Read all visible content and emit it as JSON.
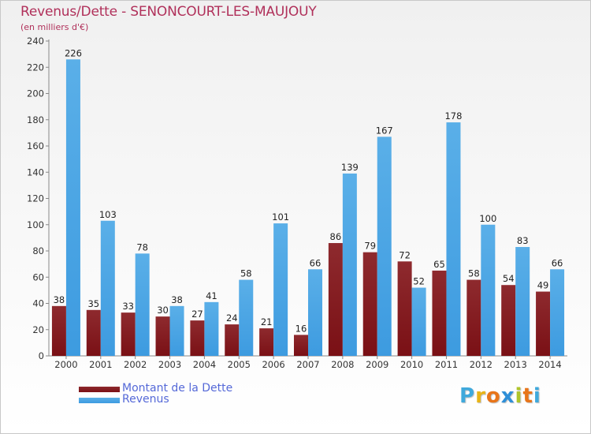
{
  "title": "Revenus/Dette - SENONCOURT-LES-MAUJOUY",
  "subtitle": "(en milliers d'€)",
  "logo": {
    "text": "Proxiti",
    "colors": [
      "#3fa9dc",
      "#e8b417",
      "#e8751a",
      "#2e8fd8",
      "#b0c52a",
      "#e8751a",
      "#3fa9dc"
    ]
  },
  "colors": {
    "dette": "#7a1015",
    "dette_top": "#8e2a2e",
    "revenus": "#3d9be0",
    "revenus_top": "#5aafe8",
    "title": "#b0305a",
    "legend_text": "#5569d8"
  },
  "chart_data": {
    "type": "bar",
    "categories": [
      "2000",
      "2001",
      "2002",
      "2003",
      "2004",
      "2005",
      "2006",
      "2007",
      "2008",
      "2009",
      "2010",
      "2011",
      "2012",
      "2013",
      "2014"
    ],
    "series": [
      {
        "name": "Montant de la Dette",
        "values": [
          38,
          35,
          33,
          30,
          27,
          24,
          21,
          16,
          86,
          79,
          72,
          65,
          58,
          54,
          49
        ]
      },
      {
        "name": "Revenus",
        "values": [
          226,
          103,
          78,
          38,
          41,
          58,
          101,
          66,
          139,
          167,
          52,
          178,
          100,
          83,
          66
        ]
      }
    ],
    "ylim": [
      0,
      240
    ],
    "yticks": [
      0,
      20,
      40,
      60,
      80,
      100,
      120,
      140,
      160,
      180,
      200,
      220,
      240
    ],
    "grid": false,
    "legend_position": "bottom-left",
    "data_labels": true
  }
}
